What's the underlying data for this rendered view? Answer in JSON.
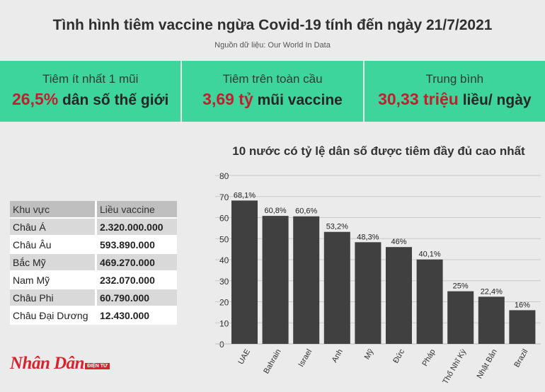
{
  "header": {
    "title": "Tình hình tiêm vaccine ngừa Covid-19 tính đến ngày 21/7/2021",
    "source": "Nguồn dữ liệu: Our World In Data"
  },
  "stats": [
    {
      "label": "Tiêm ít nhất 1 mũi",
      "value_highlight": "26,5%",
      "value_rest": " dân số thế giới"
    },
    {
      "label": "Tiêm trên toàn cầu",
      "value_highlight": "3,69 tỷ",
      "value_rest": " mũi vaccine"
    },
    {
      "label": "Trung bình",
      "value_highlight": "30,33 triệu",
      "value_rest": " liều/ ngày"
    }
  ],
  "regions": {
    "headers": [
      "Khu vực",
      "Liều vaccine"
    ],
    "rows": [
      [
        "Châu Á",
        "2.320.000.000"
      ],
      [
        "Châu Âu",
        "593.890.000"
      ],
      [
        "Bắc Mỹ",
        "469.270.000"
      ],
      [
        "Nam Mỹ",
        "232.070.000"
      ],
      [
        "Châu Phi",
        "60.790.000"
      ],
      [
        "Châu Đại Dương",
        "12.430.000"
      ]
    ]
  },
  "logo": {
    "main": "Nhân Dân",
    "sub": "ĐIỆN TỬ"
  },
  "chart_data": {
    "type": "bar",
    "title": "10 nước có tỷ lệ dân số được tiêm đầy đủ cao nhất",
    "categories": [
      "UAE",
      "Bahrain",
      "Israel",
      "Anh",
      "Mỹ",
      "Đức",
      "Pháp",
      "Thổ Nhĩ Kỳ",
      "Nhật Bản",
      "Brazil"
    ],
    "values": [
      68.1,
      60.8,
      60.6,
      53.2,
      48.3,
      46,
      40.1,
      25,
      22.4,
      16
    ],
    "data_labels": [
      "68,1%",
      "60,8%",
      "60,6%",
      "53,2%",
      "48,3%",
      "46%",
      "40,1%",
      "25%",
      "22,4%",
      "16%"
    ],
    "yticks": [
      0,
      10,
      20,
      30,
      40,
      50,
      60,
      70,
      80
    ],
    "ylim": [
      0,
      80
    ],
    "grid": true,
    "bar_color": "#404040"
  }
}
